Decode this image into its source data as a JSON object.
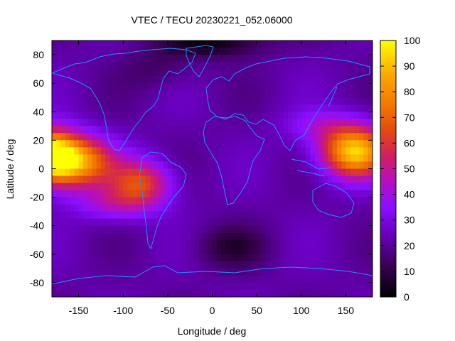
{
  "chart_data": {
    "type": "heatmap",
    "title": "VTEC / TECU 20230221_052.06000",
    "xlabel": "Longitude / deg",
    "ylabel": "Latitude / deg",
    "xlim": [
      -180,
      180
    ],
    "ylim": [
      -90,
      90
    ],
    "x_ticks": [
      -150,
      -100,
      -50,
      0,
      50,
      100,
      150
    ],
    "y_ticks": [
      -80,
      -60,
      -40,
      -20,
      0,
      20,
      40,
      60,
      80
    ],
    "colorbar": {
      "range": [
        0,
        100
      ],
      "ticks": [
        0,
        10,
        20,
        30,
        40,
        50,
        60,
        70,
        80,
        90,
        100
      ],
      "colormap": [
        "#000000",
        "#4b006e",
        "#8200ff",
        "#c6119e",
        "#ff4a00",
        "#ffaa00",
        "#ffff00"
      ]
    },
    "overlay": "coastlines",
    "overlay_color": "#1e90ff",
    "field_description_values": {
      "background_level": 22,
      "pacific_band_peak": 85,
      "west_pacific_band_peak": 92,
      "americas_band_peak": 62,
      "north_polar_minimum": 3,
      "south_atlantic_minimum": 6
    }
  }
}
